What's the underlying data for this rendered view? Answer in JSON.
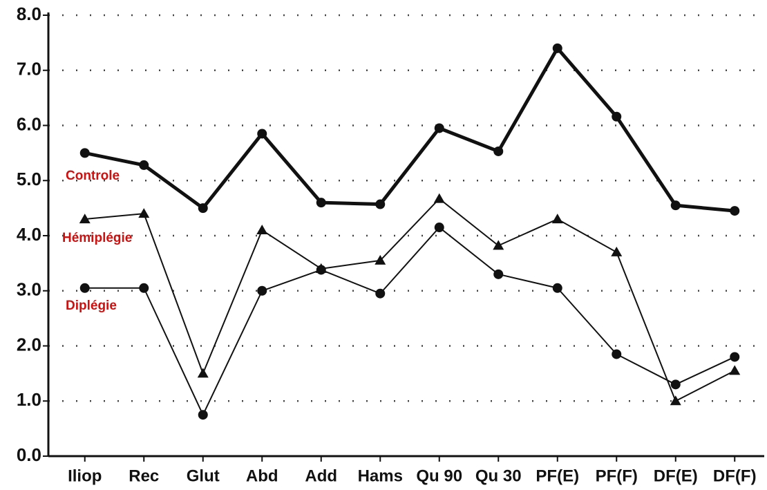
{
  "chart_data": {
    "type": "line",
    "categories": [
      "Iliop",
      "Rec",
      "Glut",
      "Abd",
      "Add",
      "Hams",
      "Qu 90",
      "Qu 30",
      "PF(E)",
      "PF(F)",
      "DF(E)",
      "DF(F)"
    ],
    "series": [
      {
        "name": "Controle",
        "color": "#111111",
        "marker": "circle",
        "values": [
          5.5,
          5.28,
          4.5,
          5.85,
          4.6,
          4.57,
          5.95,
          5.53,
          7.4,
          6.16,
          4.55,
          4.45
        ]
      },
      {
        "name": "Hémiplégie",
        "color": "#111111",
        "marker": "triangle",
        "values": [
          4.3,
          4.4,
          1.5,
          4.1,
          3.4,
          3.55,
          4.67,
          3.82,
          4.3,
          3.7,
          1.0,
          1.55
        ]
      },
      {
        "name": "Diplégie",
        "color": "#111111",
        "marker": "circle",
        "values": [
          3.05,
          3.05,
          0.75,
          3.0,
          3.38,
          2.95,
          4.15,
          3.3,
          3.05,
          1.85,
          1.3,
          1.8
        ]
      }
    ],
    "annotation_color": "#cc1111",
    "ylim": [
      0,
      8
    ],
    "yticks": [
      {
        "value": 0,
        "label": "0.0"
      },
      {
        "value": 1,
        "label": "1.0"
      },
      {
        "value": 2,
        "label": "2.0"
      },
      {
        "value": 3,
        "label": "3.0"
      },
      {
        "value": 4,
        "label": "4.0"
      },
      {
        "value": 5,
        "label": "5.0"
      },
      {
        "value": 6,
        "label": "6.0"
      },
      {
        "value": 7,
        "label": "7.0"
      },
      {
        "value": 8,
        "label": "8.0"
      }
    ],
    "grid": true
  }
}
